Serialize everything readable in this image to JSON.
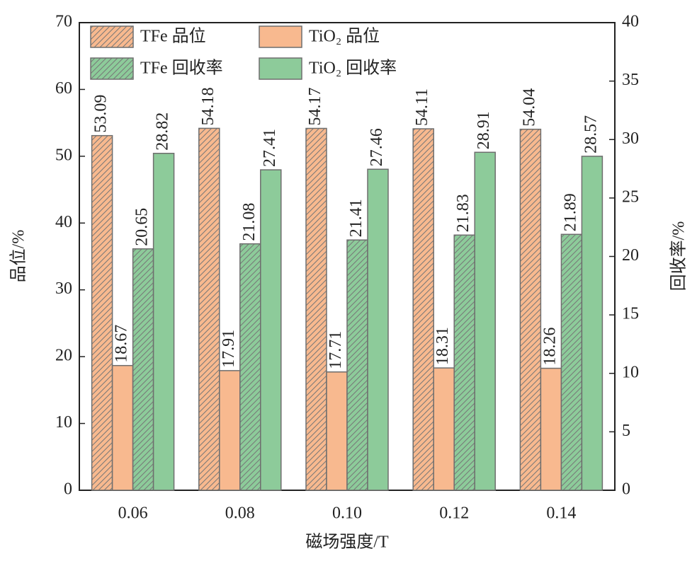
{
  "chart_data": {
    "type": "bar",
    "x_label": "磁场强度/T",
    "y_label": "品位/%",
    "y2_label": "回收率/%",
    "categories": [
      "0.06",
      "0.08",
      "0.10",
      "0.12",
      "0.14"
    ],
    "series": [
      {
        "name": "TFe 品位",
        "color": "#f8b98f",
        "hatch": true,
        "values": [
          53.09,
          54.18,
          54.17,
          54.11,
          54.04
        ]
      },
      {
        "name": "TiO₂ 品位",
        "color": "#f8b98f",
        "hatch": false,
        "values": [
          18.67,
          17.91,
          17.71,
          18.31,
          18.26
        ]
      },
      {
        "name": "TFe 回收率",
        "color": "#8dcb9a",
        "hatch": true,
        "axis": "y2",
        "values": [
          20.65,
          21.08,
          21.41,
          21.83,
          21.89
        ]
      },
      {
        "name": "TiO₂ 回收率",
        "color": "#8dcb9a",
        "hatch": false,
        "axis": "y2",
        "values": [
          28.82,
          27.41,
          27.46,
          28.91,
          28.57
        ]
      }
    ],
    "ylim": [
      0,
      70
    ],
    "yticks": [
      0,
      10,
      20,
      30,
      40,
      50,
      60,
      70
    ],
    "y2lim": [
      0,
      40
    ],
    "y2ticks": [
      0,
      5,
      10,
      15,
      20,
      25,
      30,
      35,
      40
    ],
    "legend": "upper left",
    "data_labels": true
  }
}
